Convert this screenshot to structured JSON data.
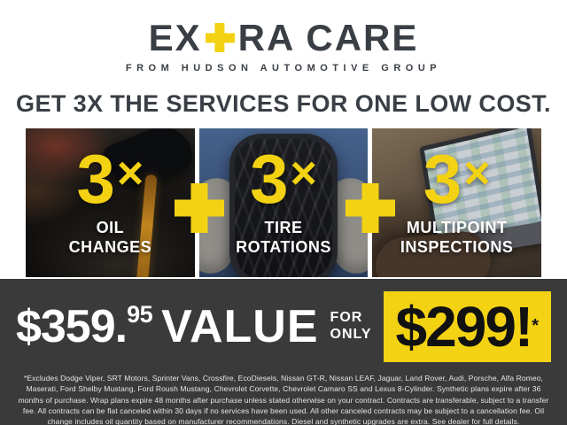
{
  "colors": {
    "yellow": "#F3D214",
    "dark_text": "#3A3F46",
    "band_bg": "#3A3A3A",
    "panel_text": "#FFFFFF",
    "price_text": "#111111"
  },
  "logo": {
    "prefix": "EX",
    "suffix": "RA CARE",
    "subtitle": "FROM HUDSON AUTOMOTIVE GROUP"
  },
  "headline": "GET 3X THE SERVICES FOR ONE LOW COST.",
  "services": [
    {
      "multiplier_number": "3",
      "multiplier_symbol": "×",
      "label": "OIL\nCHANGES"
    },
    {
      "multiplier_number": "3",
      "multiplier_symbol": "×",
      "label": "TIRE\nROTATIONS"
    },
    {
      "multiplier_number": "3",
      "multiplier_symbol": "×",
      "label": "MULTIPOINT\nINSPECTIONS"
    }
  ],
  "pricing": {
    "value_amount": "$359.",
    "value_cents": "95",
    "value_word": "VALUE",
    "connector_line1": "FOR",
    "connector_line2": "ONLY",
    "price": "$299!",
    "price_asterisk": "*"
  },
  "disclaimer": "*Excludes Dodge Viper, SRT Motors, Sprinter Vans, Crossfire, EcoDiesels, Nissan GT-R, Nissan LEAF, Jaguar, Land Rover, Audi, Porsche, Alfa Romeo, Maserati, Ford Shelby Mustang, Ford Roush Mustang, Chevrolet Corvette, Chevrolet Camaro SS and Lexus 8-Cylinder. Synthetic plans expire after 36 months of purchase. Wrap plans expire 48 months after purchase unless stated otherwise on your contract. Contracts are transferable, subject to a transfer fee. All contracts can be flat canceled within 30 days if no services have been used. All other canceled contracts may be subject to a cancellation fee. Oil change includes oil quantity based on manufacturer recommendations. Diesel and synthetic upgrades are extra. See dealer for full details."
}
